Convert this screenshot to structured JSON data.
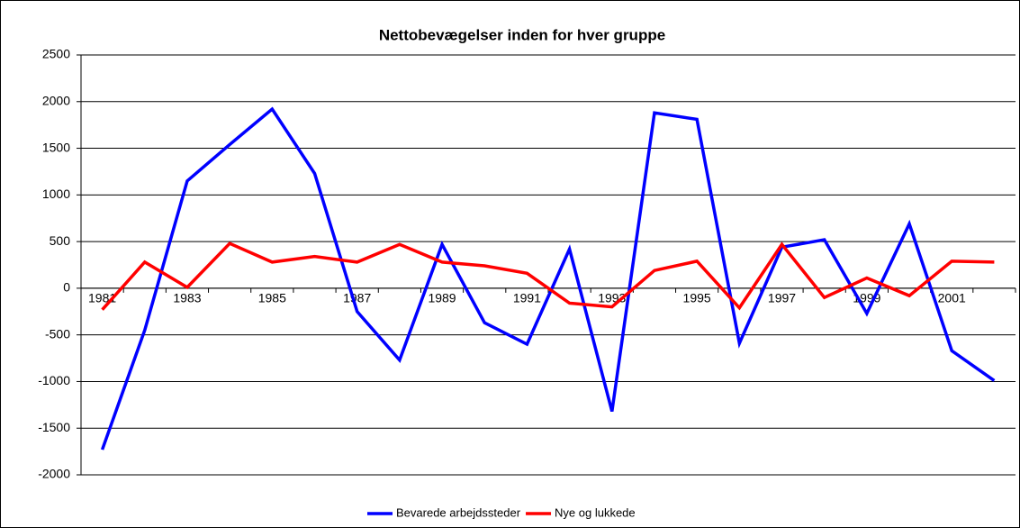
{
  "chart_data": {
    "type": "line",
    "title": "Nettobevægelser inden for hver gruppe",
    "categories": [
      "1981",
      null,
      "1983",
      null,
      "1985",
      null,
      "1987",
      null,
      "1989",
      null,
      "1991",
      null,
      "1993",
      null,
      "1995",
      null,
      "1997",
      null,
      "1999",
      null,
      "2001",
      null
    ],
    "series": [
      {
        "name": "Bevarede arbejdssteder",
        "color": "#0000ff",
        "values": [
          -1730,
          -450,
          1150,
          1540,
          1920,
          1230,
          -250,
          -770,
          470,
          -370,
          -600,
          420,
          -1320,
          1880,
          1810,
          -590,
          440,
          520,
          -270,
          690,
          -670,
          -990
        ]
      },
      {
        "name": "Nye og lukkede",
        "color": "#ff0000",
        "values": [
          -230,
          280,
          10,
          480,
          280,
          340,
          280,
          470,
          280,
          240,
          160,
          -160,
          -200,
          190,
          290,
          -210,
          470,
          -100,
          110,
          -80,
          290,
          280
        ]
      }
    ],
    "ylim": [
      -2000,
      2500
    ],
    "yticks": [
      -2000,
      -1500,
      -1000,
      -500,
      0,
      500,
      1000,
      1500,
      2000,
      2500
    ],
    "grid": true,
    "legend": "bottom"
  }
}
